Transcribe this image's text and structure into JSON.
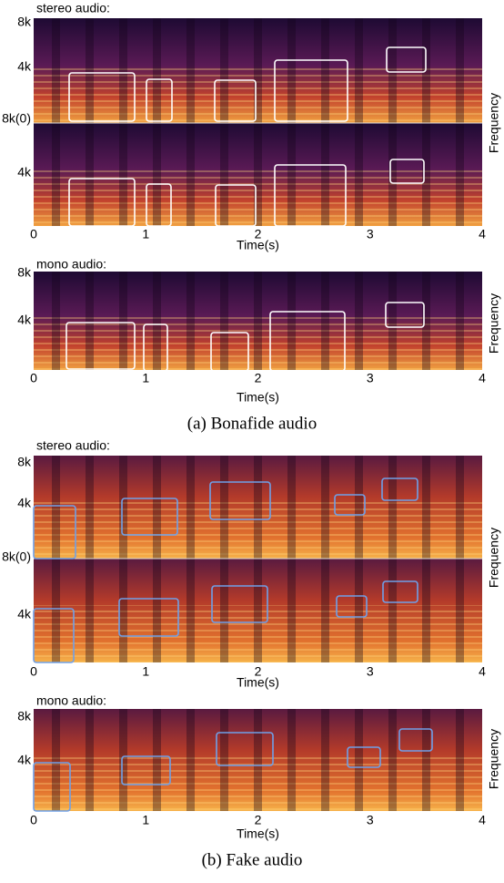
{
  "figure_a": {
    "caption": "(a) Bonafide audio",
    "stereo": {
      "label": "stereo audio:",
      "y_ticks": [
        "8k",
        "4k",
        "8k(0)",
        "4k"
      ],
      "x_ticks": [
        "0",
        "1",
        "2",
        "3",
        "4"
      ],
      "x_label": "Time(s)",
      "y_label": "Frequency"
    },
    "mono": {
      "label": "mono audio:",
      "y_ticks": [
        "8k",
        "4k"
      ],
      "x_ticks": [
        "0",
        "1",
        "2",
        "3",
        "4"
      ],
      "x_label": "Time(s)",
      "y_label": "Frequency"
    }
  },
  "figure_b": {
    "caption": "(b) Fake audio",
    "stereo": {
      "label": "stereo audio:",
      "y_ticks": [
        "8k",
        "4k",
        "8k(0)",
        "4k"
      ],
      "x_ticks": [
        "0",
        "1",
        "2",
        "3",
        "4"
      ],
      "x_label": "Time(s)",
      "y_label": "Frequency"
    },
    "mono": {
      "label": "mono audio:",
      "y_ticks": [
        "8k",
        "4k"
      ],
      "x_ticks": [
        "0",
        "1",
        "2",
        "3",
        "4"
      ],
      "x_label": "Time(s)",
      "y_label": "Frequency"
    }
  }
}
